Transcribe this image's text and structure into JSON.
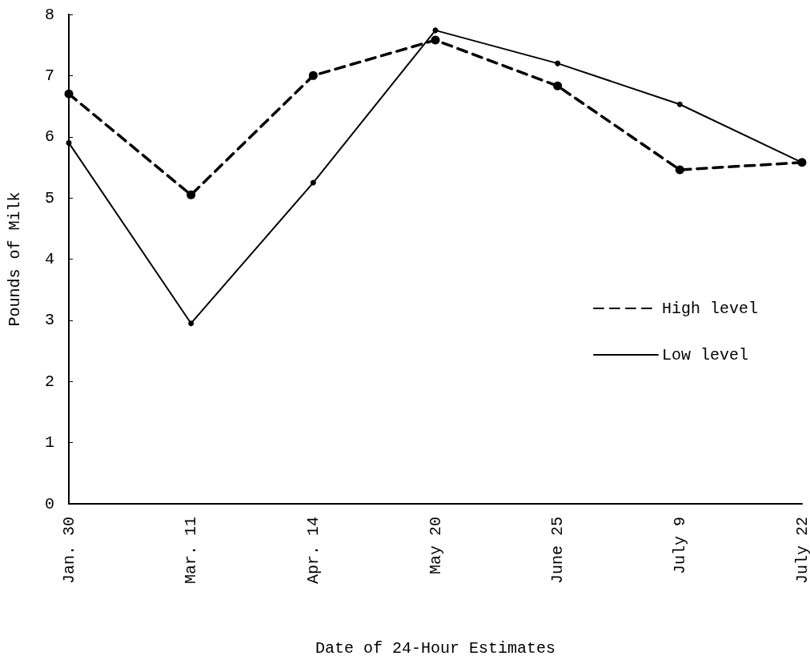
{
  "chart_data": {
    "type": "line",
    "xlabel": "Date of 24-Hour Estimates",
    "ylabel": "Pounds of Milk",
    "categories": [
      "Jan. 30",
      "Mar. 11",
      "Apr. 14",
      "May 20",
      "June 25",
      "July 9",
      "July 22"
    ],
    "series": [
      {
        "name": "High level",
        "color": "#000000",
        "line_style": "dashed",
        "values": [
          6.7,
          5.05,
          7.0,
          7.58,
          6.83,
          5.46,
          5.58
        ]
      },
      {
        "name": "Low level",
        "color": "#000000",
        "line_style": "solid",
        "values": [
          5.9,
          2.95,
          5.25,
          7.74,
          7.2,
          6.53,
          5.58
        ]
      }
    ],
    "ylim": [
      0,
      8
    ],
    "yticks": [
      0,
      1,
      2,
      3,
      4,
      5,
      6,
      7,
      8
    ],
    "grid": false,
    "legend": "right",
    "marker": "circle"
  }
}
